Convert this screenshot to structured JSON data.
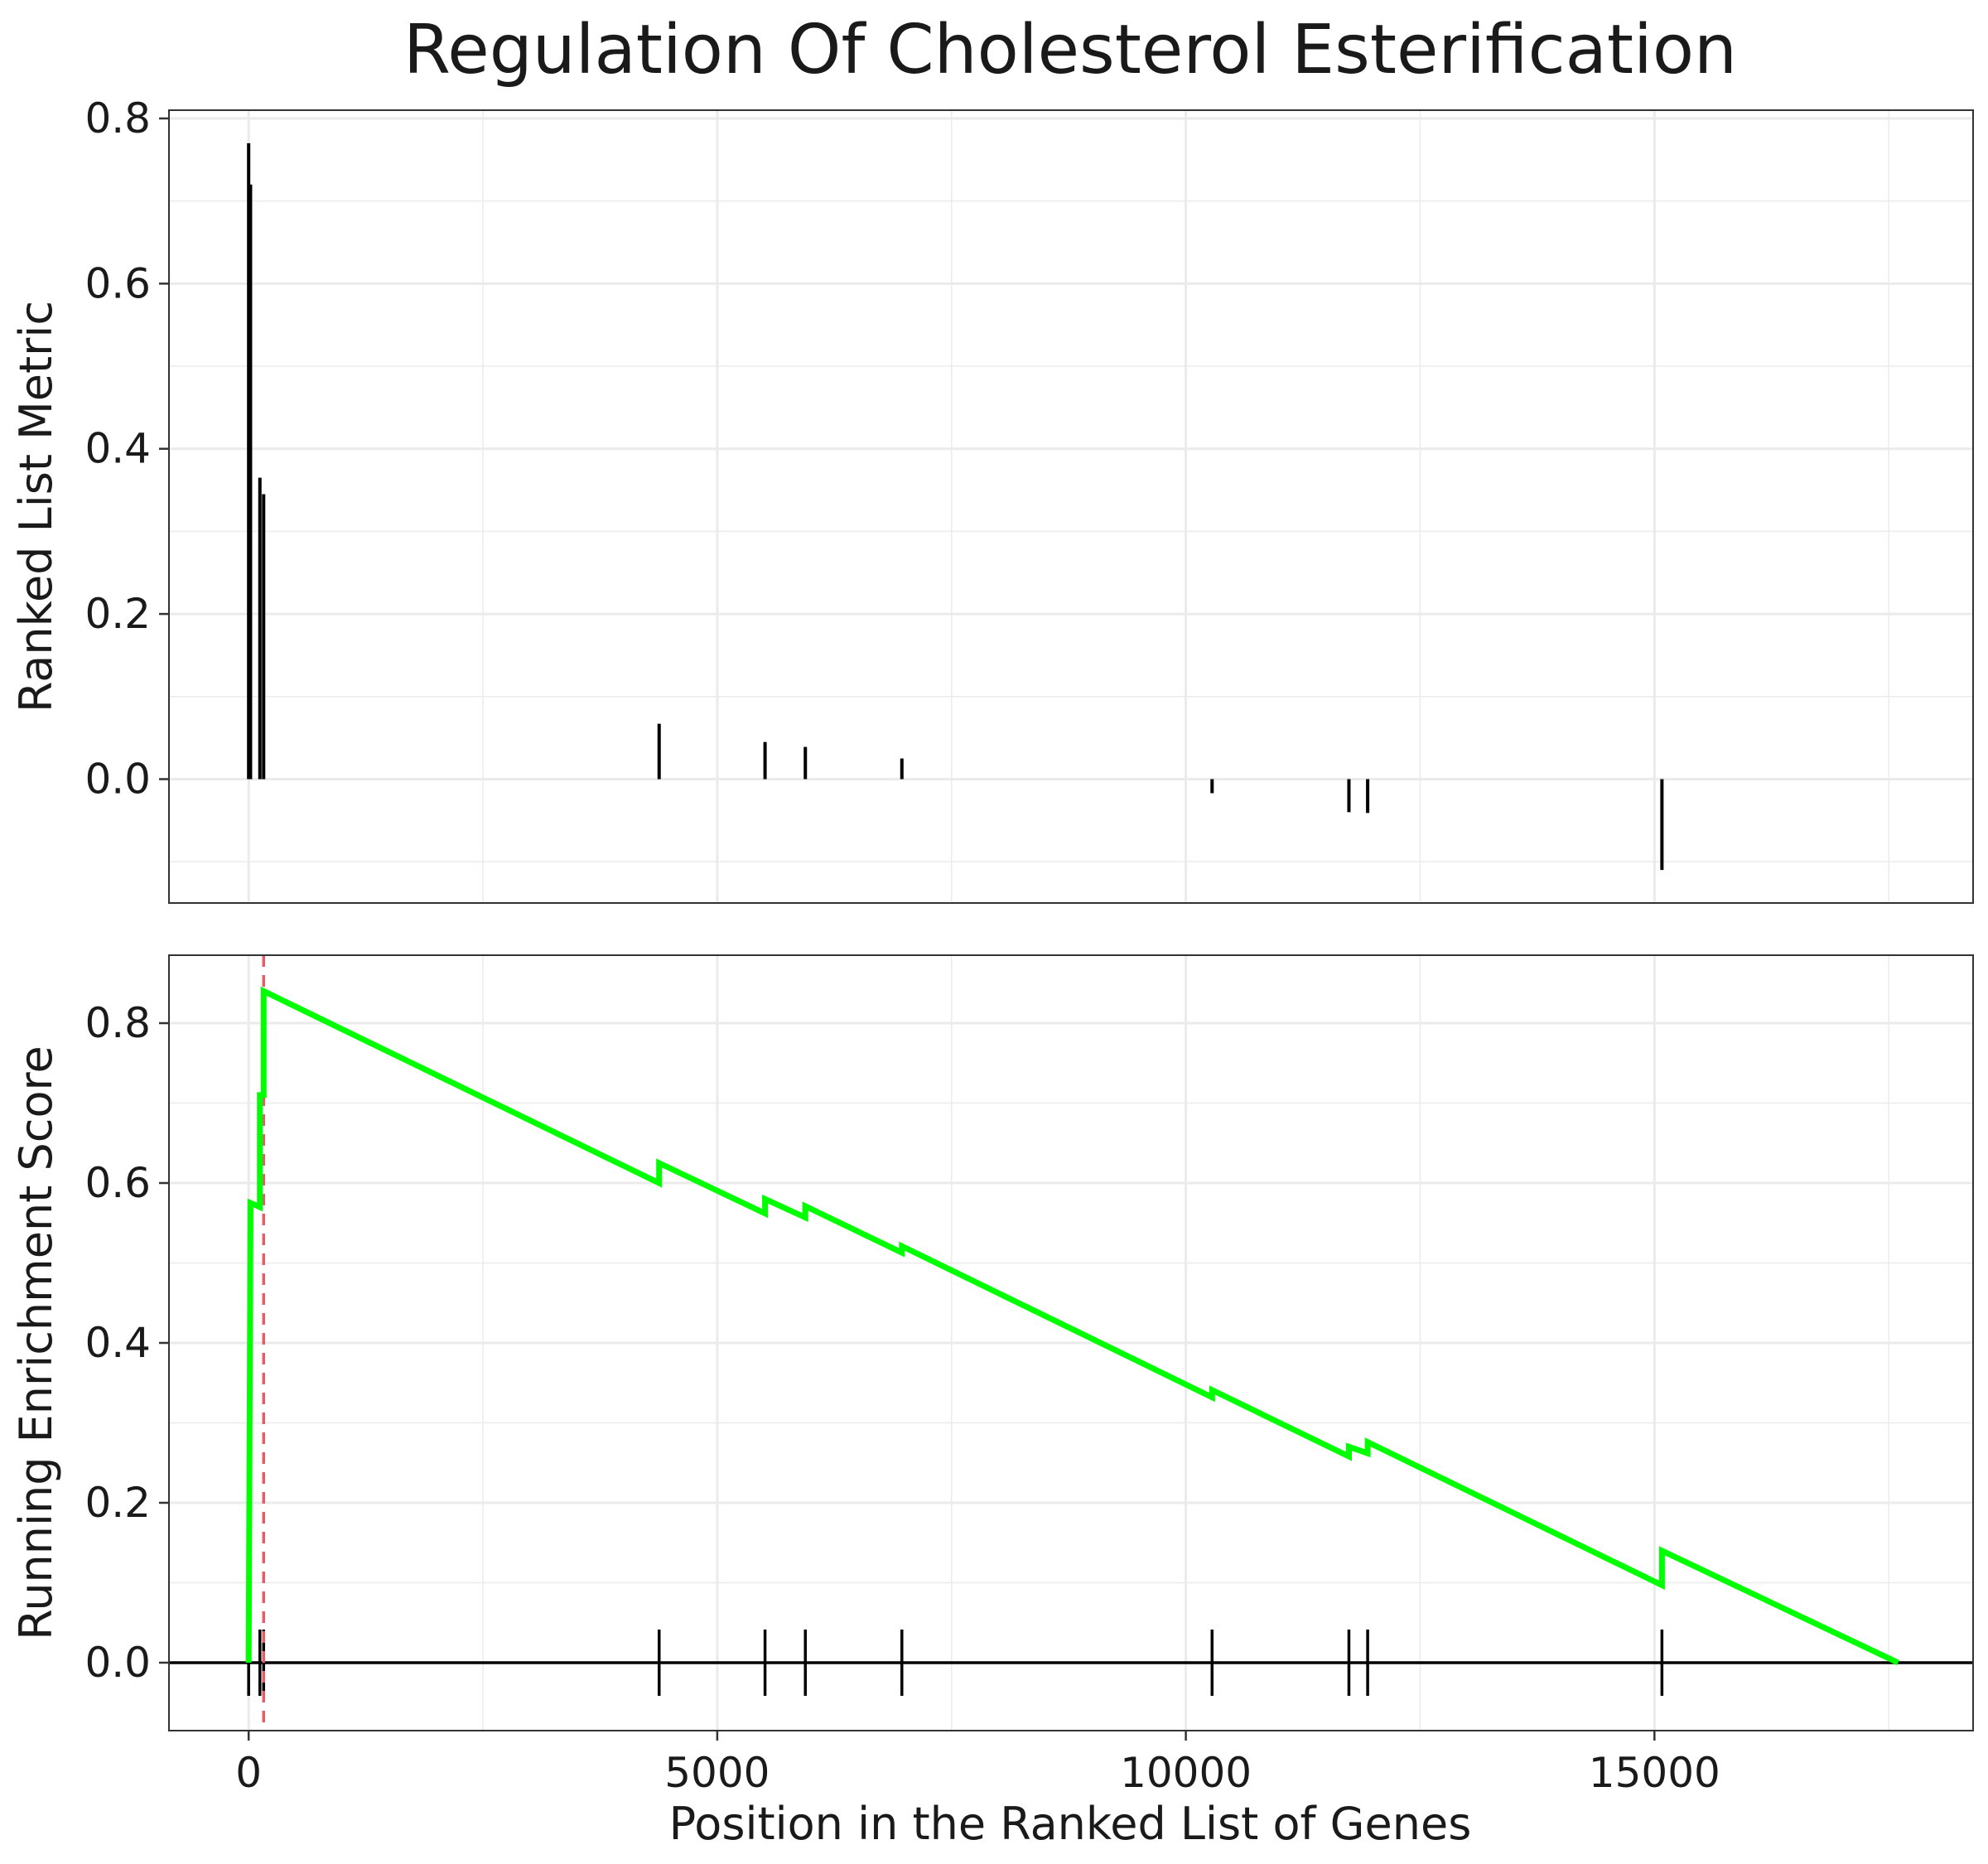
{
  "chart_data": {
    "type": "line",
    "title": "Regulation Of Cholesterol Esterification",
    "xlabel": "Position in the Ranked List of Genes",
    "x_range": [
      -850,
      18400
    ],
    "x_ticks": [
      0,
      5000,
      10000,
      15000
    ],
    "x_tick_labels": [
      "0",
      "5000",
      "10000",
      "15000"
    ],
    "grid": true,
    "panels": [
      {
        "ylabel": "Ranked List Metric",
        "type": "bar",
        "y_range": [
          -0.15,
          0.81
        ],
        "y_ticks": [
          0.0,
          0.2,
          0.4,
          0.6,
          0.8
        ],
        "y_tick_labels": [
          "0.0",
          "0.2",
          "0.4",
          "0.6",
          "0.8"
        ],
        "bars": [
          {
            "x": 0,
            "value": 0.77
          },
          {
            "x": 20,
            "value": 0.72
          },
          {
            "x": 120,
            "value": 0.365
          },
          {
            "x": 160,
            "value": 0.345
          },
          {
            "x": 4380,
            "value": 0.067
          },
          {
            "x": 5510,
            "value": 0.045
          },
          {
            "x": 5940,
            "value": 0.039
          },
          {
            "x": 6970,
            "value": 0.025
          },
          {
            "x": 10280,
            "value": -0.017
          },
          {
            "x": 11740,
            "value": -0.04
          },
          {
            "x": 11940,
            "value": -0.041
          },
          {
            "x": 15080,
            "value": -0.11
          }
        ]
      },
      {
        "ylabel": "Running Enrichment Score",
        "type": "line",
        "y_range": [
          -0.085,
          0.885
        ],
        "y_ticks": [
          0.0,
          0.2,
          0.4,
          0.6,
          0.8
        ],
        "y_tick_labels": [
          "0.0",
          "0.2",
          "0.4",
          "0.6",
          "0.8"
        ],
        "line_color": "#00ff00",
        "peak_line": {
          "x": 160,
          "color": "#e0606a"
        },
        "series": [
          {
            "x": [
              0,
              20,
              20,
              120,
              120,
              160,
              160,
              4380,
              4380,
              5510,
              5510,
              5940,
              5940,
              6970,
              6970,
              10280,
              10280,
              11740,
              11740,
              11940,
              11940,
              15080,
              15080,
              17600
            ],
            "y": [
              0.0,
              0.575,
              0.575,
              0.57,
              0.71,
              0.71,
              0.84,
              0.6,
              0.625,
              0.562,
              0.58,
              0.557,
              0.571,
              0.513,
              0.521,
              0.332,
              0.341,
              0.258,
              0.27,
              0.262,
              0.276,
              0.097,
              0.14,
              0.0
            ]
          }
        ],
        "hit_marks": [
          0,
          120,
          160,
          4380,
          5510,
          5940,
          6970,
          10280,
          11740,
          11940,
          15080
        ]
      }
    ]
  }
}
